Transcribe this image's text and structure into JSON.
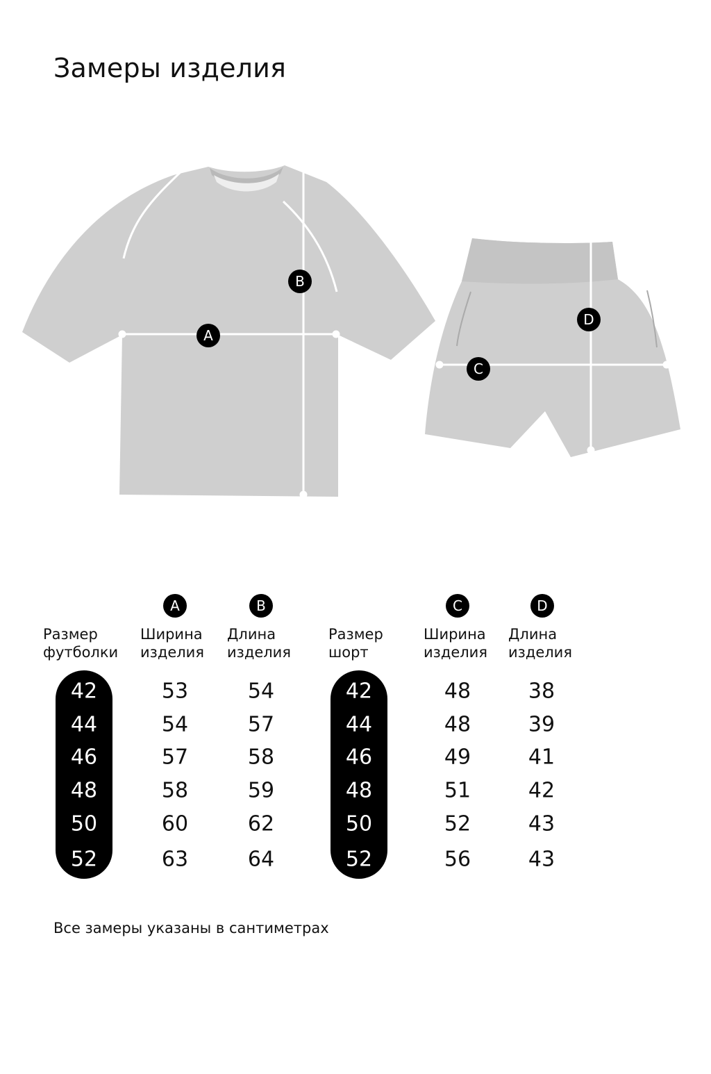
{
  "title": "Замеры изделия",
  "colors": {
    "garment": "#cfcfcf",
    "accent": "#000000",
    "measure_line": "#ffffff"
  },
  "diagram": {
    "tshirt_markers": [
      "A",
      "B"
    ],
    "shorts_markers": [
      "C",
      "D"
    ]
  },
  "tshirt_table": {
    "badges": [
      "A",
      "B"
    ],
    "headers": [
      [
        "Размер",
        "футболки"
      ],
      [
        "Ширина",
        "изделия"
      ],
      [
        "Длина",
        "изделия"
      ]
    ],
    "rows": [
      [
        "42",
        "53",
        "54"
      ],
      [
        "44",
        "54",
        "57"
      ],
      [
        "46",
        "57",
        "58"
      ],
      [
        "48",
        "58",
        "59"
      ],
      [
        "50",
        "60",
        "62"
      ],
      [
        "52",
        "63",
        "64"
      ]
    ]
  },
  "shorts_table": {
    "badges": [
      "C",
      "D"
    ],
    "headers": [
      [
        "Размер",
        "шорт"
      ],
      [
        "Ширина",
        "изделия"
      ],
      [
        "Длина",
        "изделия"
      ]
    ],
    "rows": [
      [
        "42",
        "48",
        "38"
      ],
      [
        "44",
        "48",
        "39"
      ],
      [
        "46",
        "49",
        "41"
      ],
      [
        "48",
        "51",
        "42"
      ],
      [
        "50",
        "52",
        "43"
      ],
      [
        "52",
        "56",
        "43"
      ]
    ]
  },
  "footer": "Все замеры указаны в сантиметрах"
}
